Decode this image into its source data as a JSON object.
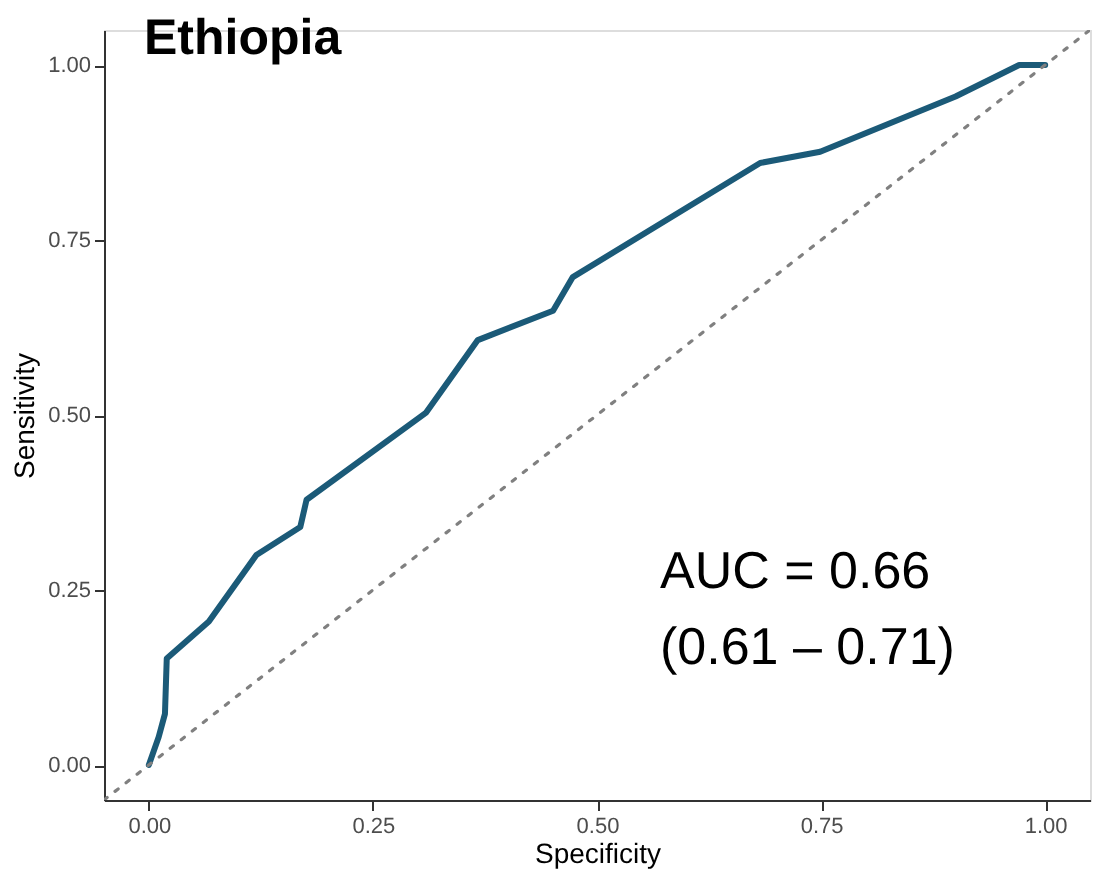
{
  "chart_data": {
    "type": "line",
    "title": "Ethiopia",
    "xlabel": "Specificity",
    "ylabel": "Sensitivity",
    "xlim": [
      -0.05,
      1.05
    ],
    "ylim": [
      -0.05,
      1.05
    ],
    "xticks": [
      {
        "value": 0,
        "label": "0.00"
      },
      {
        "value": 0.25,
        "label": "0.25"
      },
      {
        "value": 0.5,
        "label": "0.50"
      },
      {
        "value": 0.75,
        "label": "0.75"
      },
      {
        "value": 1,
        "label": "1.00"
      }
    ],
    "yticks": [
      {
        "value": 0,
        "label": "0.00"
      },
      {
        "value": 0.25,
        "label": "0.25"
      },
      {
        "value": 0.5,
        "label": "0.50"
      },
      {
        "value": 0.75,
        "label": "0.75"
      },
      {
        "value": 1,
        "label": "1.00"
      }
    ],
    "grid": false,
    "annotations": [
      "AUC = 0.66",
      "(0.61 – 0.71)"
    ],
    "series": [
      {
        "color": "#1b5a78",
        "line_style": "solid",
        "x": [
          0,
          0.011,
          0.018,
          0.02,
          0.067,
          0.12,
          0.169,
          0.176,
          0.309,
          0.367,
          0.451,
          0.473,
          0.682,
          0.749,
          0.9,
          0.971,
          1
        ],
        "values": [
          0,
          0.04,
          0.073,
          0.152,
          0.205,
          0.3,
          0.34,
          0.379,
          0.503,
          0.607,
          0.649,
          0.697,
          0.86,
          0.876,
          0.955,
          1,
          1
        ]
      },
      {
        "color": "#808080",
        "line_style": "dotted",
        "x": [
          -0.05,
          1.05
        ],
        "values": [
          -0.05,
          1.05
        ]
      }
    ]
  }
}
